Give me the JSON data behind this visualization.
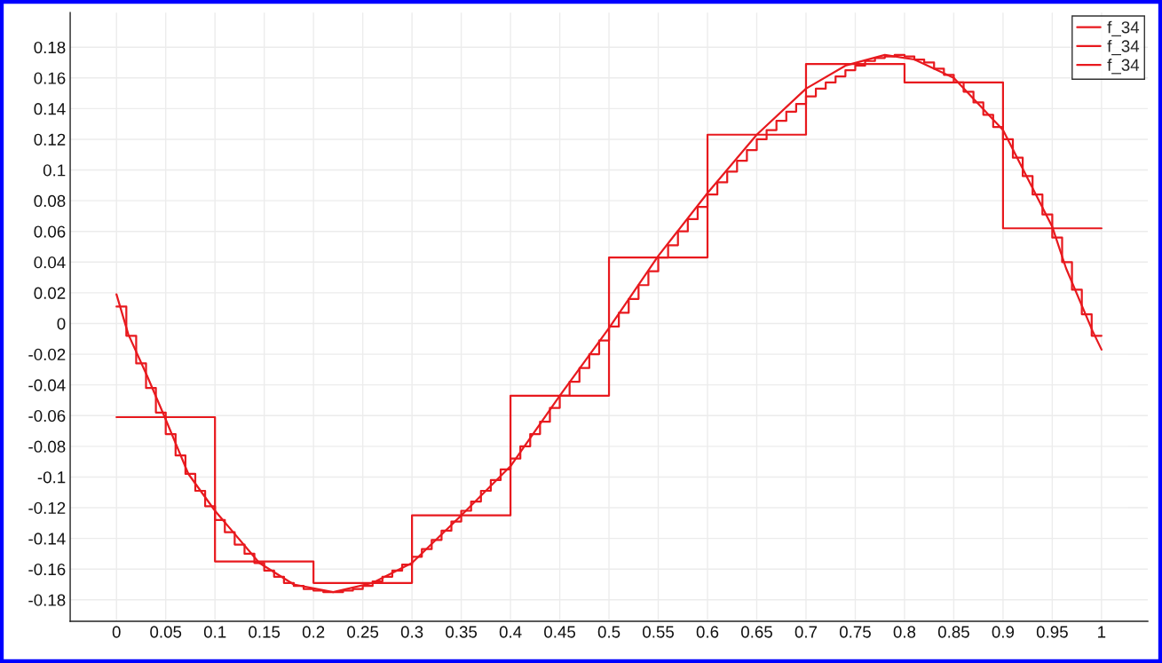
{
  "chart_data": {
    "type": "line",
    "xlim": [
      -0.047,
      1.047
    ],
    "ylim": [
      -0.194,
      0.2025
    ],
    "xticks": [
      0,
      0.05,
      0.1,
      0.15,
      0.2,
      0.25,
      0.3,
      0.35,
      0.4,
      0.45,
      0.5,
      0.55,
      0.6,
      0.65,
      0.7,
      0.75,
      0.8,
      0.85,
      0.9,
      0.95,
      1
    ],
    "yticks": [
      -0.18,
      -0.16,
      -0.14,
      -0.12,
      -0.1,
      -0.08,
      -0.06,
      -0.04,
      -0.02,
      0,
      0.02,
      0.04,
      0.06,
      0.08,
      0.1,
      0.12,
      0.14,
      0.16,
      0.18
    ],
    "grid": true,
    "legend": "top right",
    "series": [
      {
        "name": "f_34",
        "color": "#e8191e",
        "x": [
          0,
          0.012,
          0.031,
          0.049,
          0.073,
          0.1,
          0.145,
          0.18,
          0.22,
          0.26,
          0.3,
          0.35,
          0.4,
          0.45,
          0.5,
          0.55,
          0.6,
          0.65,
          0.7,
          0.74,
          0.78,
          0.81,
          0.85,
          0.9,
          0.95,
          0.964,
          0.991,
          1.0
        ],
        "values": [
          0.019,
          -0.007,
          -0.034,
          -0.061,
          -0.098,
          -0.122,
          -0.156,
          -0.17,
          -0.175,
          -0.169,
          -0.156,
          -0.125,
          -0.093,
          -0.047,
          -0.003,
          0.044,
          0.085,
          0.123,
          0.153,
          0.168,
          0.175,
          0.172,
          0.16,
          0.126,
          0.063,
          0.036,
          -0.005,
          -0.017
        ]
      },
      {
        "name": "f_34",
        "type": "step",
        "color": "#e8191e",
        "x": [
          0,
          0.1,
          0.2,
          0.3,
          0.4,
          0.5,
          0.6,
          0.7,
          0.8,
          0.9,
          1
        ],
        "values": [
          -0.061,
          -0.155,
          -0.169,
          -0.125,
          -0.047,
          0.043,
          0.123,
          0.169,
          0.157,
          0.062,
          0.062
        ]
      },
      {
        "name": "f_34",
        "type": "step",
        "color": "#e8191e",
        "x": [
          0,
          0.01,
          0.02,
          0.03,
          0.04,
          0.05,
          0.06,
          0.07,
          0.08,
          0.09,
          0.1,
          0.11,
          0.12,
          0.13,
          0.14,
          0.15,
          0.16,
          0.17,
          0.18,
          0.19,
          0.2,
          0.21,
          0.22,
          0.23,
          0.24,
          0.25,
          0.26,
          0.27,
          0.28,
          0.29,
          0.3,
          0.31,
          0.32,
          0.33,
          0.34,
          0.35,
          0.36,
          0.37,
          0.38,
          0.39,
          0.4,
          0.41,
          0.42,
          0.43,
          0.44,
          0.45,
          0.46,
          0.47,
          0.48,
          0.49,
          0.5,
          0.51,
          0.52,
          0.53,
          0.54,
          0.55,
          0.56,
          0.57,
          0.58,
          0.59,
          0.6,
          0.61,
          0.62,
          0.63,
          0.64,
          0.65,
          0.66,
          0.67,
          0.68,
          0.69,
          0.7,
          0.71,
          0.72,
          0.73,
          0.74,
          0.75,
          0.76,
          0.77,
          0.78,
          0.79,
          0.8,
          0.81,
          0.82,
          0.83,
          0.84,
          0.85,
          0.86,
          0.87,
          0.88,
          0.89,
          0.9,
          0.91,
          0.92,
          0.93,
          0.94,
          0.95,
          0.96,
          0.97,
          0.98,
          0.99,
          1
        ],
        "values": [
          0.011,
          -0.008,
          -0.026,
          -0.042,
          -0.058,
          -0.072,
          -0.086,
          -0.098,
          -0.109,
          -0.119,
          -0.128,
          -0.136,
          -0.144,
          -0.15,
          -0.156,
          -0.161,
          -0.165,
          -0.169,
          -0.171,
          -0.173,
          -0.174,
          -0.175,
          -0.175,
          -0.174,
          -0.173,
          -0.171,
          -0.168,
          -0.165,
          -0.161,
          -0.157,
          -0.152,
          -0.147,
          -0.141,
          -0.135,
          -0.129,
          -0.122,
          -0.116,
          -0.109,
          -0.102,
          -0.095,
          -0.088,
          -0.08,
          -0.072,
          -0.064,
          -0.055,
          -0.047,
          -0.038,
          -0.029,
          -0.02,
          -0.011,
          -0.002,
          0.007,
          0.016,
          0.025,
          0.034,
          0.043,
          0.051,
          0.06,
          0.068,
          0.076,
          0.084,
          0.092,
          0.099,
          0.106,
          0.113,
          0.12,
          0.126,
          0.132,
          0.138,
          0.143,
          0.148,
          0.153,
          0.157,
          0.161,
          0.165,
          0.168,
          0.171,
          0.173,
          0.174,
          0.175,
          0.174,
          0.172,
          0.17,
          0.166,
          0.162,
          0.157,
          0.151,
          0.144,
          0.136,
          0.128,
          0.12,
          0.108,
          0.096,
          0.084,
          0.071,
          0.056,
          0.04,
          0.022,
          0.006,
          -0.008,
          -0.008
        ]
      }
    ]
  }
}
